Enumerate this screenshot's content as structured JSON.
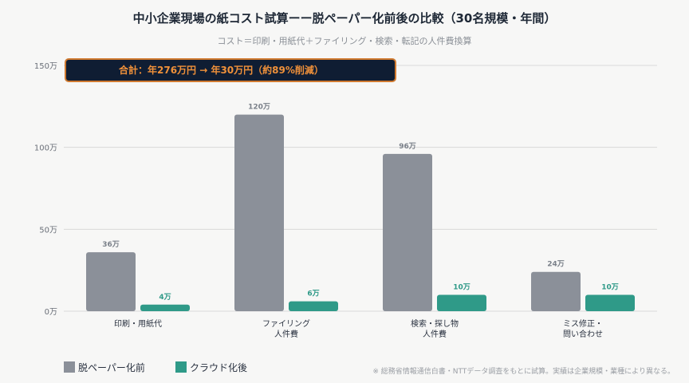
{
  "chart_data": {
    "type": "bar",
    "title": "中小企業現場の紙コスト試算ーー脱ペーパー化前後の比較（30名規模・年間）",
    "subtitle": "コスト＝印刷・用紙代＋ファイリング・検索・転記の人件費換算",
    "categories": [
      [
        "印刷・用紙代"
      ],
      [
        "ファイリング",
        "人件費"
      ],
      [
        "検索・探し物",
        "人件費"
      ],
      [
        "ミス修正・",
        "問い合わせ"
      ]
    ],
    "series": [
      {
        "name": "脱ペーパー化前",
        "color": "#8b9099",
        "values": [
          36,
          120,
          96,
          24
        ],
        "labels": [
          "36万",
          "120万",
          "96万",
          "24万"
        ]
      },
      {
        "name": "クラウド化後",
        "color": "#2f9a88",
        "values": [
          4,
          6,
          10,
          10
        ],
        "labels": [
          "4万",
          "6万",
          "10万",
          "10万"
        ]
      }
    ],
    "yticks": [
      0,
      50,
      100,
      150
    ],
    "ytick_labels": [
      "0万",
      "50万",
      "100万",
      "150万"
    ],
    "ylim": [
      0,
      150
    ],
    "grid": true,
    "legend_position": "bottom-left",
    "annotation": "合計：年276万円 → 年30万円（約89%削減）"
  },
  "footnote": "※ 総務省情報通信白書・NTTデータ調査をもとに試算。実績は企業規模・業種により異なる。",
  "colors": {
    "label_before": "#7a8089",
    "label_after": "#2f9a88",
    "grid": "#d9d9d9",
    "callout_bg": "#0f1d33",
    "callout_border": "#d07a30",
    "callout_text": "#f0913a"
  }
}
